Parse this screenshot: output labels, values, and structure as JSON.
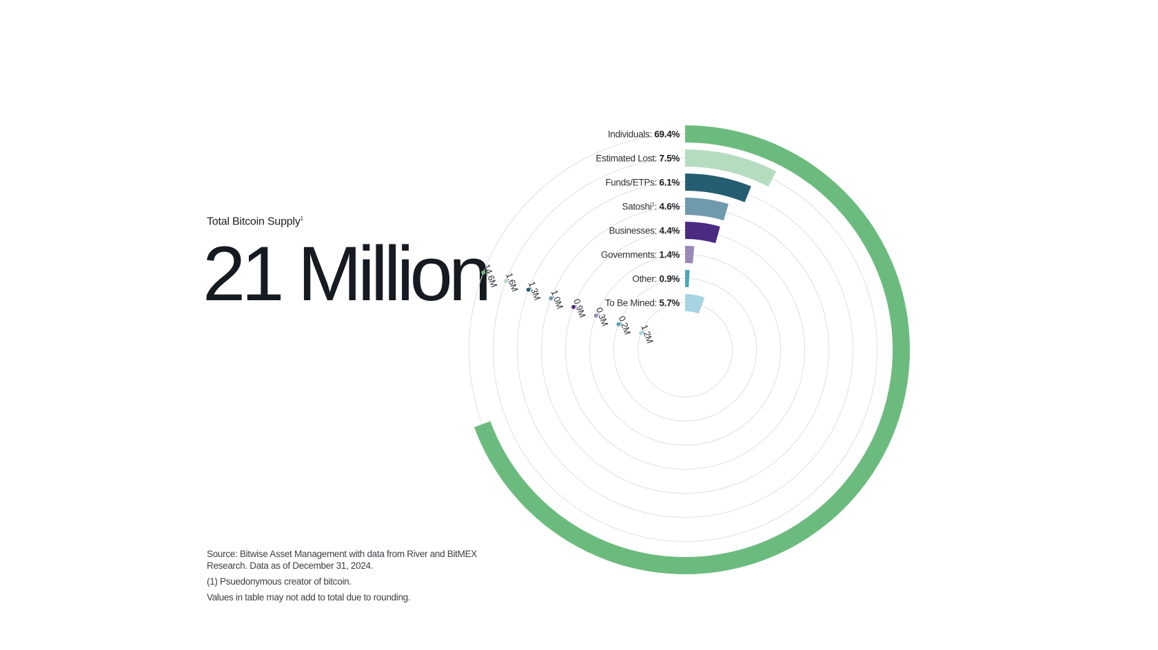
{
  "headline": {
    "label": "Total Bitcoin Supply",
    "label_suffix": "1",
    "value": "21 Million"
  },
  "chart_data": {
    "type": "radial-bar",
    "categories": [
      "Individuals",
      "Estimated Lost",
      "Funds/ETPs",
      "Satoshi",
      "Businesses",
      "Governments",
      "Other",
      "To Be Mined"
    ],
    "category_marks": [
      "",
      "",
      "",
      "1",
      "",
      "",
      "",
      ""
    ],
    "percent_labels": [
      "69.4%",
      "7.5%",
      "6.1%",
      "4.6%",
      "4.4%",
      "1.4%",
      "0.9%",
      "5.7%"
    ],
    "values_pct": [
      69.4,
      7.5,
      6.1,
      4.6,
      4.4,
      1.4,
      0.9,
      5.7
    ],
    "amount_labels": [
      "14.6M",
      "1.6M",
      "1.3M",
      "1.0M",
      "0.9M",
      "0.3M",
      "0.2M",
      "1.2M"
    ],
    "colors": [
      "#6cbb7e",
      "#b6dcc0",
      "#245e70",
      "#6f9aae",
      "#4b2a82",
      "#9a88b8",
      "#4aa6bb",
      "#a6d4e2"
    ],
    "scale_max_pct": 75
  },
  "footnotes": {
    "source": "Source: Bitwise Asset Management with data from River and BitMEX Research. Data as of December 31, 2024.",
    "note1": "(1) Psuedonymous creator of bitcoin.",
    "note2": "Values in table may not add to total due to rounding."
  }
}
